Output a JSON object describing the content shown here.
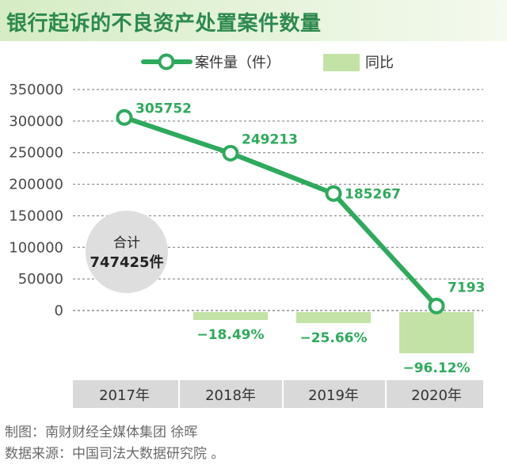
{
  "title": "银行起诉的不良资产处置案件数量",
  "colors": {
    "line": "#2eaa5c",
    "bar": "#c3e2a6",
    "title": "#2c8a4e",
    "axis_band": "#d9d9d9",
    "total_circle": "#dedede"
  },
  "legend": {
    "line_label": "案件量（件）",
    "bar_label": "同比"
  },
  "total": {
    "label": "合计",
    "value": "747425件"
  },
  "chart_data": {
    "type": "line+bar",
    "categories": [
      "2017年",
      "2018年",
      "2019年",
      "2020年"
    ],
    "series": [
      {
        "name": "案件量（件）",
        "type": "line",
        "values": [
          305752,
          249213,
          185267,
          7193
        ],
        "labels": [
          "305752",
          "249213",
          "185267",
          "7193"
        ]
      },
      {
        "name": "同比",
        "type": "bar",
        "values": [
          null,
          -18.49,
          -25.66,
          -96.12
        ],
        "labels": [
          "",
          "−18.49%",
          "−25.66%",
          "−96.12%"
        ]
      }
    ],
    "y_ticks": [
      "0",
      "50000",
      "100000",
      "150000",
      "200000",
      "250000",
      "300000",
      "350000"
    ],
    "ylim": [
      0,
      350000
    ],
    "grid": "horizontal-dashed"
  },
  "footer": {
    "credit": "制图：南财财经全媒体集团 徐晖",
    "source": "数据来源：中国司法大数据研究院 。"
  }
}
